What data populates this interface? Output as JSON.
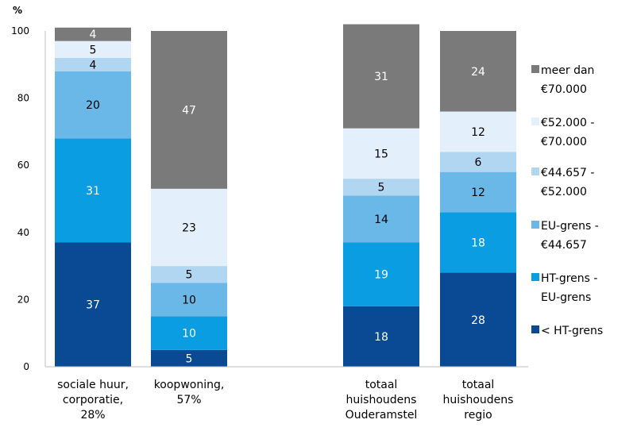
{
  "chart_data": {
    "type": "bar",
    "stacked": true,
    "percent_stacked": true,
    "y_unit_label": "%",
    "ylim": [
      0,
      100
    ],
    "yticks": [
      0,
      20,
      40,
      60,
      80,
      100
    ],
    "grid": false,
    "legend_position": "right",
    "categories": [
      [
        "sociale huur,",
        "corporatie,",
        "28%"
      ],
      [
        "koopwoning,",
        "57%"
      ],
      [
        "totaal",
        "huishoudens",
        "Ouderamstel"
      ],
      [
        "totaal",
        "huishoudens",
        "regio"
      ]
    ],
    "series": [
      {
        "name": "< HT-grens",
        "legend_lines": [
          "< HT-grens"
        ],
        "color": "#0a4a94",
        "label_color": "#ffffff",
        "values": [
          37,
          5,
          18,
          28
        ]
      },
      {
        "name": "HT-grens - EU-grens",
        "legend_lines": [
          "HT-grens -",
          "EU-grens"
        ],
        "color": "#0a9de2",
        "label_color": "#ffffff",
        "values": [
          31,
          10,
          19,
          18
        ]
      },
      {
        "name": "EU-grens - €44.657",
        "legend_lines": [
          "EU-grens -",
          "€44.657"
        ],
        "color": "#6ab8e8",
        "label_color": "#000000",
        "values": [
          20,
          10,
          14,
          12
        ]
      },
      {
        "name": "€44.657 - €52.000",
        "legend_lines": [
          "€44.657 -",
          "€52.000"
        ],
        "color": "#b0d6f2",
        "label_color": "#000000",
        "values": [
          4,
          5,
          5,
          6
        ]
      },
      {
        "name": "€52.000 - €70.000",
        "legend_lines": [
          "€52.000 -",
          "€70.000"
        ],
        "color": "#e3effa",
        "label_color": "#000000",
        "values": [
          5,
          23,
          15,
          12
        ]
      },
      {
        "name": "meer dan €70.000",
        "legend_lines": [
          "meer dan",
          "€70.000"
        ],
        "color": "#7a7a7a",
        "label_color": "#ffffff",
        "values": [
          4,
          47,
          31,
          24
        ]
      }
    ]
  }
}
